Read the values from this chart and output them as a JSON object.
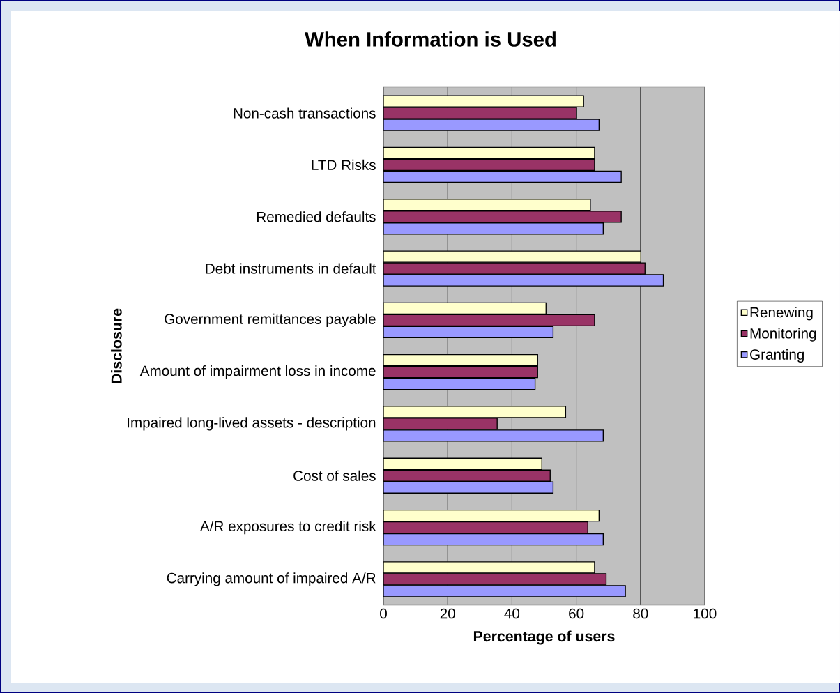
{
  "chart_data": {
    "type": "bar",
    "orientation": "horizontal",
    "title": "When Information is Used",
    "xlabel": "Percentage of users",
    "ylabel": "Disclosure",
    "categories": [
      "Non-cash transactions",
      "LTD Risks",
      "Remedied defaults",
      "Debt instruments in default",
      "Government remittances payable",
      "Amount of impairment loss in income",
      "Impaired long-lived assets - description",
      "Cost of sales",
      "A/R exposures to credit risk",
      "Carrying amount of impaired A/R"
    ],
    "series": [
      {
        "name": "Renewing",
        "color": "#ffffcc",
        "values": [
          62.3,
          65.7,
          64.4,
          80.1,
          50.6,
          48.0,
          56.7,
          49.3,
          67.1,
          65.7
        ]
      },
      {
        "name": "Monitoring",
        "color": "#993366",
        "values": [
          60.1,
          65.7,
          74.0,
          81.4,
          65.7,
          48.0,
          35.4,
          51.9,
          63.6,
          69.3
        ]
      },
      {
        "name": "Granting",
        "color": "#9999ff",
        "values": [
          67.1,
          74.0,
          68.4,
          87.1,
          52.8,
          47.2,
          68.4,
          52.8,
          68.4,
          75.3
        ]
      }
    ],
    "xlim": [
      0,
      100
    ],
    "xticks": [
      0,
      20,
      40,
      60,
      80,
      100
    ],
    "grid": "x",
    "legend": "right"
  }
}
